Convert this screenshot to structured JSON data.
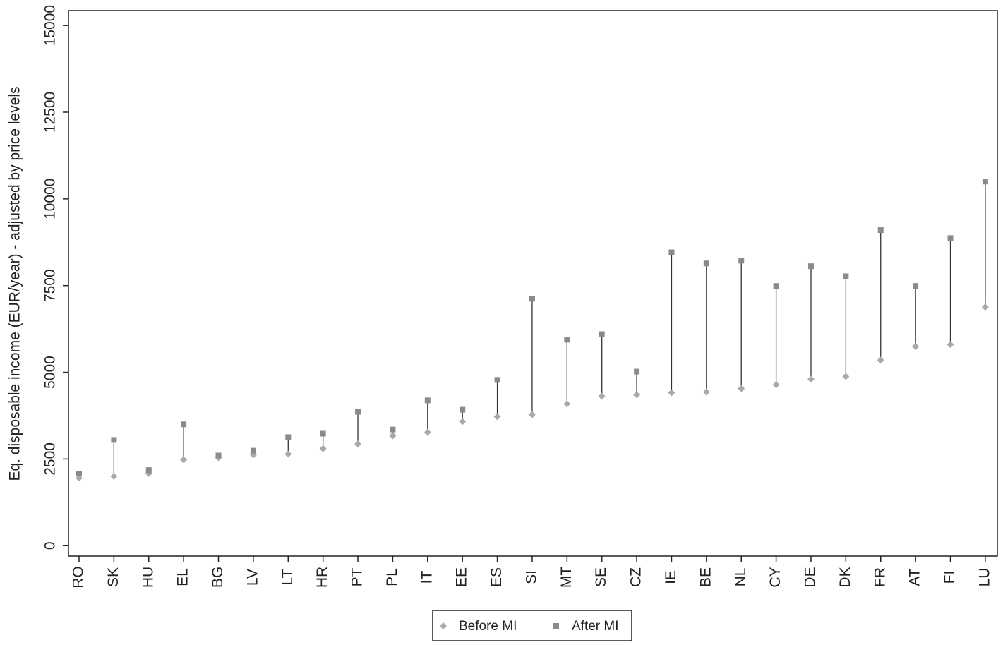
{
  "chart_data": {
    "type": "dumbbell",
    "y_label": "Eq. disposable income (EUR/year) - adjusted by price levels",
    "categories": [
      "RO",
      "SK",
      "HU",
      "EL",
      "BG",
      "LV",
      "LT",
      "HR",
      "PT",
      "PL",
      "IT",
      "EE",
      "ES",
      "SI",
      "MT",
      "SE",
      "CZ",
      "IE",
      "BE",
      "NL",
      "CY",
      "DE",
      "DK",
      "FR",
      "AT",
      "FI",
      "LU"
    ],
    "series": [
      {
        "name": "Before MI",
        "color": "#a9a9a9",
        "marker": "diamond",
        "values": [
          1950,
          2000,
          2080,
          2480,
          2540,
          2620,
          2640,
          2800,
          2930,
          3170,
          3270,
          3580,
          3720,
          3780,
          4090,
          4310,
          4350,
          4410,
          4430,
          4530,
          4640,
          4800,
          4880,
          5350,
          5740,
          5800,
          6880
        ]
      },
      {
        "name": "After MI",
        "color": "#8a8a8a",
        "marker": "square",
        "values": [
          2080,
          3050,
          2180,
          3500,
          2600,
          2740,
          3130,
          3230,
          3860,
          3350,
          4190,
          3920,
          4780,
          7120,
          5940,
          6100,
          5020,
          8460,
          8140,
          8220,
          7490,
          8060,
          7770,
          9100,
          7490,
          8870,
          10500
        ]
      }
    ],
    "connector_color": "#333333",
    "ylim": [
      -300,
      15430
    ],
    "yticks": [
      0,
      2500,
      5000,
      7500,
      10000,
      12500,
      15000
    ],
    "legend": "bottom"
  }
}
